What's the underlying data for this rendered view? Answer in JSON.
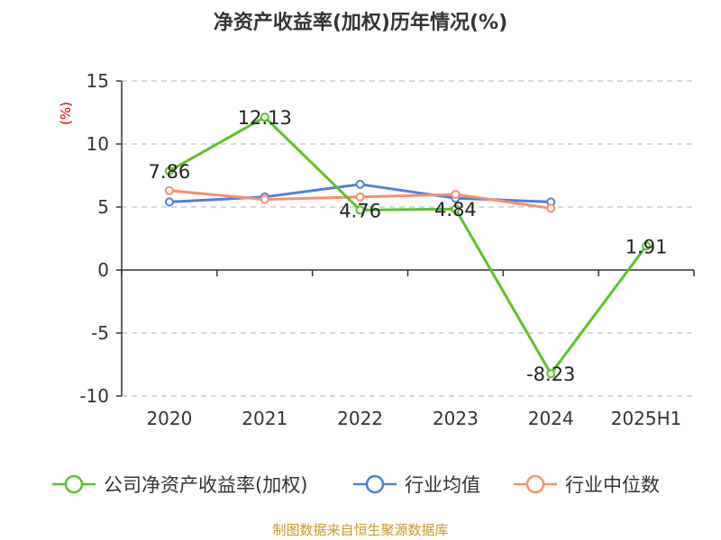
{
  "chart_data": {
    "type": "line",
    "title": "净资产收益率(加权)历年情况(%)",
    "ylabel": "(%)",
    "categories": [
      "2020",
      "2021",
      "2022",
      "2023",
      "2024",
      "2025H1"
    ],
    "ylim": [
      -10,
      15
    ],
    "yticks": [
      15,
      10,
      5,
      0,
      -5,
      -10
    ],
    "grid": true,
    "legend_position": "bottom",
    "series": [
      {
        "name": "公司净资产收益率(加权)",
        "color": "#5cc22a",
        "values": [
          7.86,
          12.13,
          4.76,
          4.84,
          -8.23,
          1.91
        ],
        "labels": [
          "7.86",
          "12.13",
          "4.76",
          "4.84",
          "-8.23",
          "1.91"
        ]
      },
      {
        "name": "行业均值",
        "color": "#4f7fdc",
        "values": [
          5.4,
          5.8,
          6.8,
          5.7,
          5.4,
          null
        ]
      },
      {
        "name": "行业中位数",
        "color": "#f7906b",
        "values": [
          6.3,
          5.6,
          5.8,
          6.0,
          4.9,
          null
        ]
      }
    ]
  },
  "source": "制图数据来自恒生聚源数据库"
}
